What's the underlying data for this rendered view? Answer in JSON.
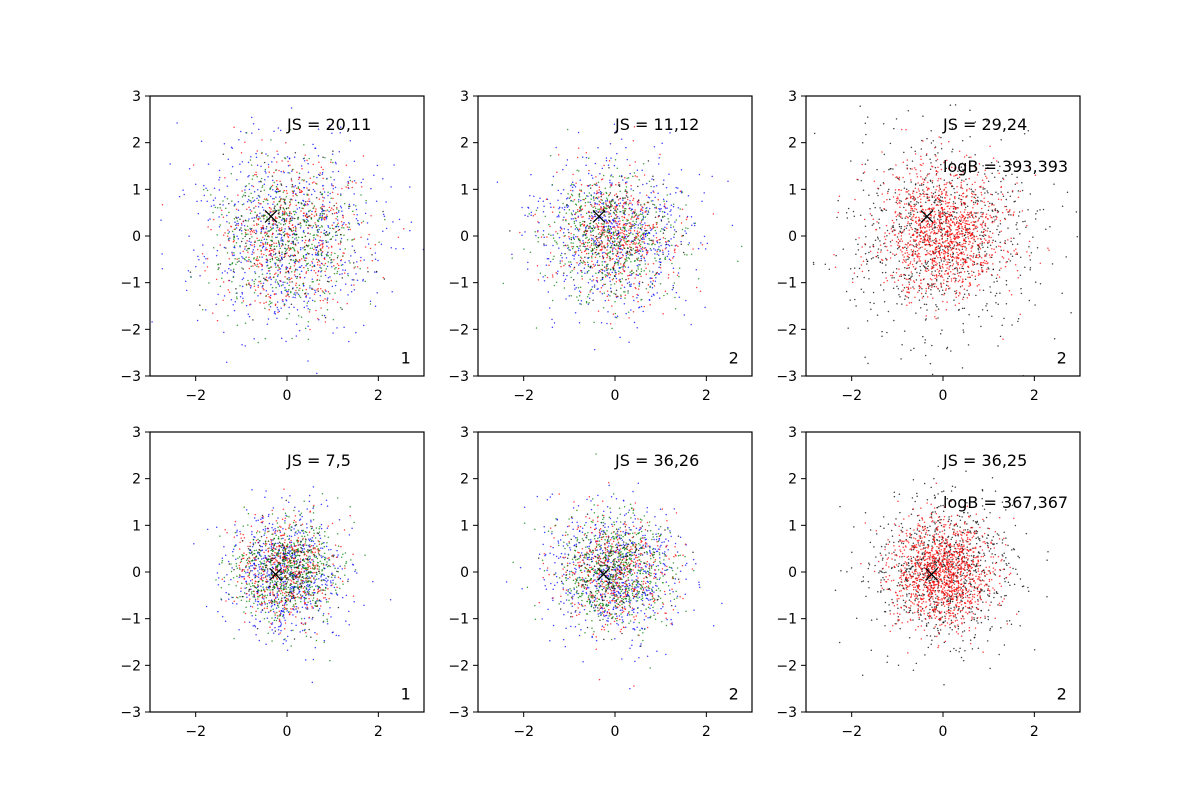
{
  "figure": {
    "background": "#ffffff",
    "layout": {
      "rows": 2,
      "cols": 3
    }
  },
  "chart_data": [
    {
      "type": "scatter",
      "xlim": [
        -3,
        3
      ],
      "ylim": [
        -3,
        3
      ],
      "xticks": [
        -2,
        0,
        2
      ],
      "yticks": [
        -3,
        -2,
        -1,
        0,
        1,
        2,
        3
      ],
      "annotations": [
        "JS = 20,11"
      ],
      "corner_label": "1",
      "marker": {
        "symbol": "x",
        "x": -0.35,
        "y": 0.42
      },
      "series": [
        {
          "color": "#0000ff",
          "center": [
            0.0,
            0.0
          ],
          "spread": 1.05,
          "count": 700
        },
        {
          "color": "#ff0000",
          "center": [
            0.0,
            0.05
          ],
          "spread": 0.8,
          "count": 550
        },
        {
          "color": "#008000",
          "center": [
            0.0,
            0.0
          ],
          "spread": 0.8,
          "count": 550
        },
        {
          "color": "#000000",
          "center": [
            0.0,
            0.0
          ],
          "spread": 0.75,
          "count": 150
        }
      ]
    },
    {
      "type": "scatter",
      "xlim": [
        -3,
        3
      ],
      "ylim": [
        -3,
        3
      ],
      "xticks": [
        -2,
        0,
        2
      ],
      "yticks": [
        -3,
        -2,
        -1,
        0,
        1,
        2,
        3
      ],
      "annotations": [
        "JS = 11,12"
      ],
      "corner_label": "2",
      "marker": {
        "symbol": "x",
        "x": -0.35,
        "y": 0.42
      },
      "series": [
        {
          "color": "#0000ff",
          "center": [
            0.0,
            0.0
          ],
          "spread": 0.85,
          "count": 650
        },
        {
          "color": "#ff0000",
          "center": [
            0.0,
            0.05
          ],
          "spread": 0.65,
          "count": 550
        },
        {
          "color": "#008000",
          "center": [
            0.0,
            0.0
          ],
          "spread": 0.7,
          "count": 550
        },
        {
          "color": "#000000",
          "center": [
            0.0,
            0.0
          ],
          "spread": 0.65,
          "count": 150
        }
      ]
    },
    {
      "type": "scatter",
      "xlim": [
        -3,
        3
      ],
      "ylim": [
        -3,
        3
      ],
      "xticks": [
        -2,
        0,
        2
      ],
      "yticks": [
        -3,
        -2,
        -1,
        0,
        1,
        2,
        3
      ],
      "annotations": [
        "JS = 29,24",
        "logB = 393,393"
      ],
      "corner_label": "2",
      "marker": {
        "symbol": "x",
        "x": -0.35,
        "y": 0.42
      },
      "series": [
        {
          "color": "#000000",
          "center": [
            0.0,
            0.0
          ],
          "spread": 1.05,
          "count": 900
        },
        {
          "color": "#ff0000",
          "center": [
            0.0,
            0.1
          ],
          "spread": 0.7,
          "count": 1300
        }
      ]
    },
    {
      "type": "scatter",
      "xlim": [
        -3,
        3
      ],
      "ylim": [
        -3,
        3
      ],
      "xticks": [
        -2,
        0,
        2
      ],
      "yticks": [
        -3,
        -2,
        -1,
        0,
        1,
        2,
        3
      ],
      "annotations": [
        "JS = 7,5"
      ],
      "corner_label": "1",
      "marker": {
        "symbol": "x",
        "x": -0.25,
        "y": -0.05
      },
      "series": [
        {
          "color": "#0000ff",
          "center": [
            0.0,
            0.0
          ],
          "spread": 0.65,
          "count": 650
        },
        {
          "color": "#ff0000",
          "center": [
            0.0,
            0.0
          ],
          "spread": 0.55,
          "count": 500
        },
        {
          "color": "#008000",
          "center": [
            0.0,
            0.0
          ],
          "spread": 0.55,
          "count": 650
        },
        {
          "color": "#000000",
          "center": [
            0.0,
            0.0
          ],
          "spread": 0.5,
          "count": 150
        }
      ]
    },
    {
      "type": "scatter",
      "xlim": [
        -3,
        3
      ],
      "ylim": [
        -3,
        3
      ],
      "xticks": [
        -2,
        0,
        2
      ],
      "yticks": [
        -3,
        -2,
        -1,
        0,
        1,
        2,
        3
      ],
      "annotations": [
        "JS = 36,26"
      ],
      "corner_label": "2",
      "marker": {
        "symbol": "x",
        "x": -0.25,
        "y": -0.05
      },
      "series": [
        {
          "color": "#0000ff",
          "center": [
            0.0,
            0.0
          ],
          "spread": 0.75,
          "count": 650
        },
        {
          "color": "#ff0000",
          "center": [
            0.0,
            0.0
          ],
          "spread": 0.6,
          "count": 500
        },
        {
          "color": "#008000",
          "center": [
            0.0,
            0.0
          ],
          "spread": 0.6,
          "count": 650
        },
        {
          "color": "#000000",
          "center": [
            0.0,
            0.0
          ],
          "spread": 0.55,
          "count": 150
        }
      ]
    },
    {
      "type": "scatter",
      "xlim": [
        -3,
        3
      ],
      "ylim": [
        -3,
        3
      ],
      "xticks": [
        -2,
        0,
        2
      ],
      "yticks": [
        -3,
        -2,
        -1,
        0,
        1,
        2,
        3
      ],
      "annotations": [
        "JS = 36,25",
        "logB = 367,367"
      ],
      "corner_label": "2",
      "marker": {
        "symbol": "x",
        "x": -0.25,
        "y": -0.05
      },
      "series": [
        {
          "color": "#000000",
          "center": [
            0.0,
            0.0
          ],
          "spread": 0.8,
          "count": 900
        },
        {
          "color": "#ff0000",
          "center": [
            0.0,
            0.0
          ],
          "spread": 0.55,
          "count": 1300
        }
      ]
    }
  ]
}
